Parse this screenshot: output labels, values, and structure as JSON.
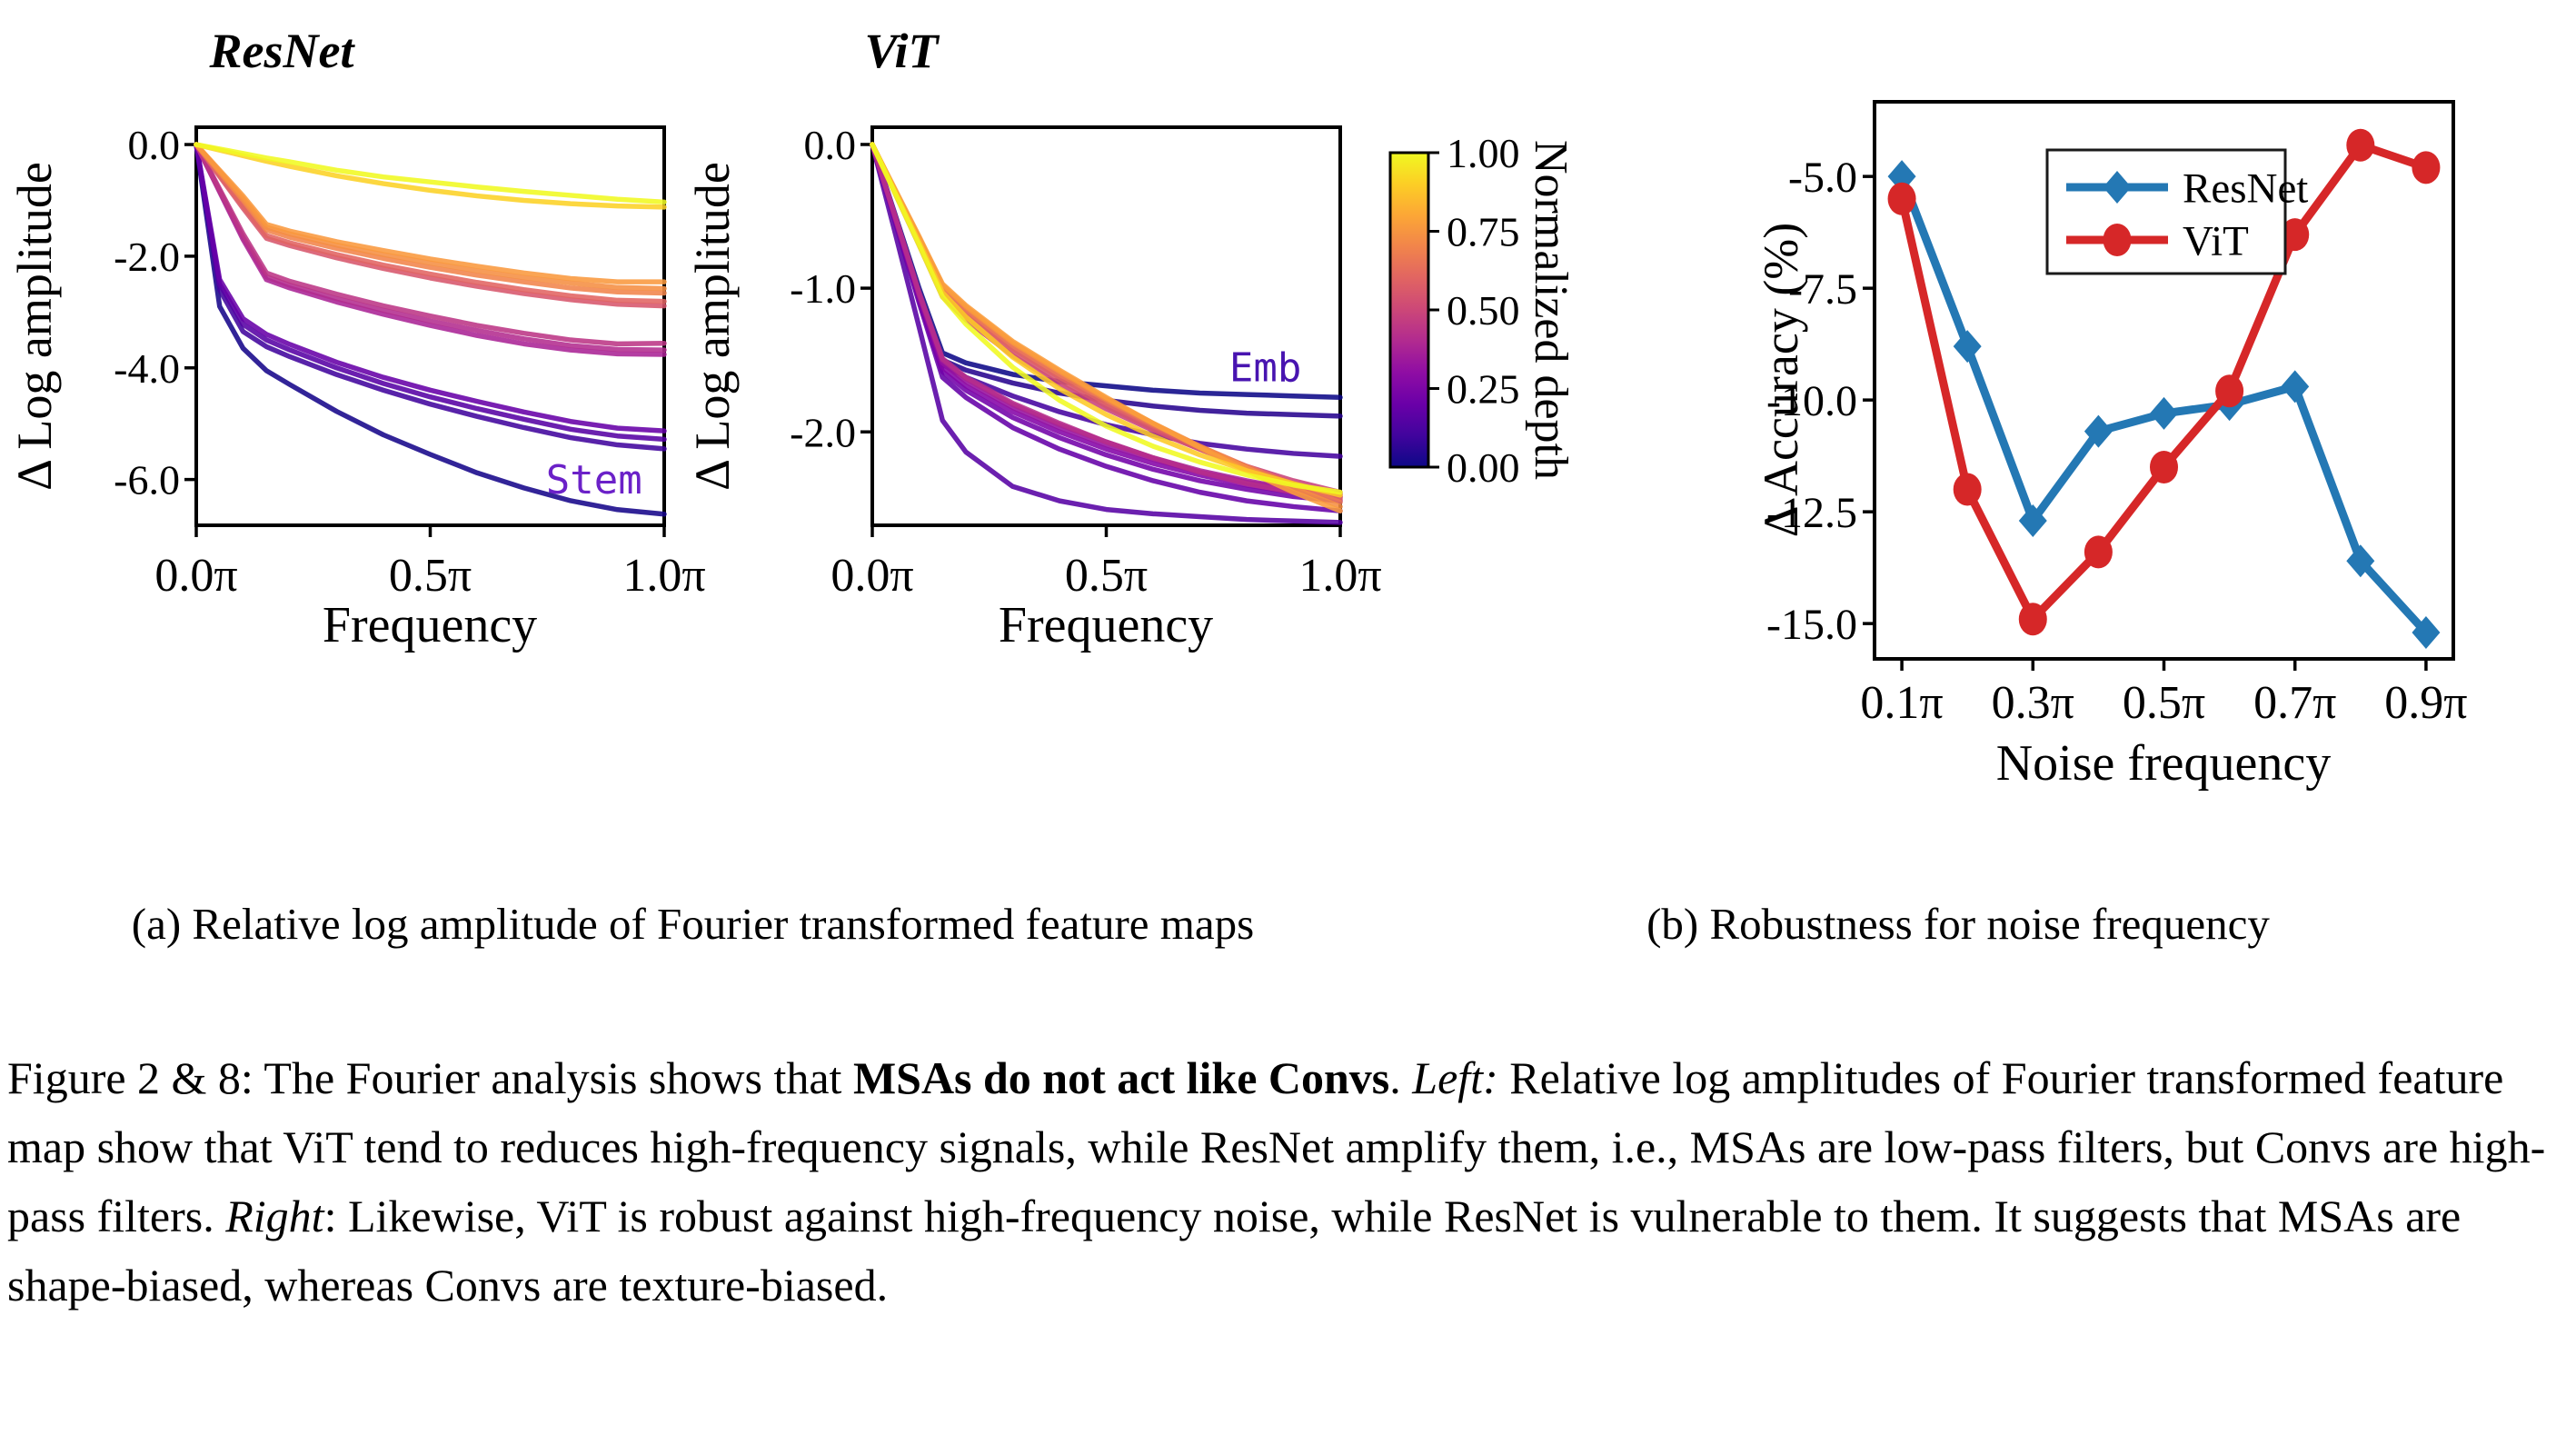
{
  "panel_a": {
    "caption": "(a) Relative log amplitude of Fourier transformed feature maps"
  },
  "panel_b": {
    "caption": "(b) Robustness for noise frequency"
  },
  "figure_caption": {
    "segments": [
      {
        "text": "Figure 2 & 8: The Fourier analysis shows that ",
        "style": "normal"
      },
      {
        "text": "MSAs do not act like Convs",
        "style": "bold"
      },
      {
        "text": ". ",
        "style": "normal"
      },
      {
        "text": "Left:",
        "style": "italic"
      },
      {
        "text": " Relative log amplitudes of Fourier transformed feature map show that ViT tend to reduces high-frequency signals, while ResNet amplify them, i.e., MSAs are low-pass filters, but Convs are high-pass filters. ",
        "style": "normal"
      },
      {
        "text": "Right",
        "style": "italic"
      },
      {
        "text": ": Likewise, ViT is robust against high-frequency noise, while ResNet is vulnerable to them. It suggests that MSAs are shape-biased, whereas Convs are texture-biased.",
        "style": "normal"
      }
    ]
  },
  "colorbar": {
    "label": "Normalized depth",
    "ticks": [
      {
        "v": 1.0,
        "label": "1.00"
      },
      {
        "v": 0.75,
        "label": "0.75"
      },
      {
        "v": 0.5,
        "label": "0.50"
      },
      {
        "v": 0.25,
        "label": "0.25"
      },
      {
        "v": 0.0,
        "label": "0.00"
      }
    ],
    "colormap": "plasma",
    "stops": [
      {
        "at": 0.0,
        "color": "#0d0887"
      },
      {
        "at": 0.1,
        "color": "#41049d"
      },
      {
        "at": 0.2,
        "color": "#6a00a8"
      },
      {
        "at": 0.3,
        "color": "#8f0da4"
      },
      {
        "at": 0.4,
        "color": "#b12a90"
      },
      {
        "at": 0.5,
        "color": "#cc4778"
      },
      {
        "at": 0.6,
        "color": "#e16462"
      },
      {
        "at": 0.7,
        "color": "#f1844b"
      },
      {
        "at": 0.8,
        "color": "#fca636"
      },
      {
        "at": 0.9,
        "color": "#fcce25"
      },
      {
        "at": 1.0,
        "color": "#f0f921"
      }
    ]
  },
  "chart_data": [
    {
      "id": "resnet-fourier",
      "type": "line",
      "title": "ResNet",
      "xlabel": "Frequency",
      "ylabel": "Δ Log amplitude",
      "xlim": [
        0,
        1
      ],
      "ylim": [
        -6.82,
        0.31
      ],
      "grid": false,
      "xticks": [
        {
          "v": 0,
          "label": "0.0π"
        },
        {
          "v": 0.5,
          "label": "0.5π"
        },
        {
          "v": 1,
          "label": "1.0π"
        }
      ],
      "yticks": [
        {
          "v": 0,
          "label": "0.0"
        },
        {
          "v": -2,
          "label": "-2.0"
        },
        {
          "v": -4,
          "label": "-4.0"
        },
        {
          "v": -6,
          "label": "-6.0"
        }
      ],
      "x": [
        0,
        0.05,
        0.1,
        0.15,
        0.2,
        0.3,
        0.4,
        0.5,
        0.6,
        0.7,
        0.8,
        0.9,
        1.0
      ],
      "series": [
        {
          "name": "stem",
          "depth": 0.02,
          "color": "#16068a",
          "values": [
            0,
            -2.9,
            -3.65,
            -4.05,
            -4.3,
            -4.78,
            -5.2,
            -5.55,
            -5.88,
            -6.15,
            -6.38,
            -6.54,
            -6.62
          ]
        },
        {
          "name": "depth-0.10",
          "depth": 0.1,
          "color": "#41049d",
          "values": [
            0,
            -2.6,
            -3.35,
            -3.62,
            -3.8,
            -4.12,
            -4.4,
            -4.65,
            -4.87,
            -5.07,
            -5.25,
            -5.38,
            -5.45
          ]
        },
        {
          "name": "depth-0.16",
          "depth": 0.16,
          "color": "#5601a4",
          "values": [
            0,
            -2.5,
            -3.22,
            -3.5,
            -3.68,
            -4.0,
            -4.28,
            -4.52,
            -4.73,
            -4.92,
            -5.1,
            -5.22,
            -5.28
          ]
        },
        {
          "name": "depth-0.22",
          "depth": 0.22,
          "color": "#6600a7",
          "values": [
            0,
            -2.42,
            -3.12,
            -3.4,
            -3.58,
            -3.9,
            -4.17,
            -4.4,
            -4.6,
            -4.79,
            -4.96,
            -5.08,
            -5.13
          ]
        },
        {
          "name": "depth-0.38",
          "depth": 0.38,
          "color": "#aa2395",
          "values": [
            0,
            -0.85,
            -1.7,
            -2.42,
            -2.57,
            -2.82,
            -3.04,
            -3.24,
            -3.42,
            -3.57,
            -3.68,
            -3.75,
            -3.76
          ]
        },
        {
          "name": "depth-0.42",
          "depth": 0.42,
          "color": "#b32c8e",
          "values": [
            0,
            -0.83,
            -1.66,
            -2.37,
            -2.52,
            -2.76,
            -2.97,
            -3.16,
            -3.33,
            -3.48,
            -3.6,
            -3.67,
            -3.68
          ]
        },
        {
          "name": "depth-0.46",
          "depth": 0.46,
          "color": "#bc3685",
          "values": [
            0,
            -0.8,
            -1.6,
            -2.3,
            -2.45,
            -2.68,
            -2.89,
            -3.07,
            -3.24,
            -3.38,
            -3.5,
            -3.57,
            -3.56
          ]
        },
        {
          "name": "depth-0.56",
          "depth": 0.56,
          "color": "#d7566c",
          "values": [
            0,
            -0.57,
            -1.14,
            -1.68,
            -1.81,
            -2.03,
            -2.22,
            -2.39,
            -2.54,
            -2.67,
            -2.78,
            -2.86,
            -2.89
          ]
        },
        {
          "name": "depth-0.60",
          "depth": 0.6,
          "color": "#e16462",
          "values": [
            0,
            -0.55,
            -1.1,
            -1.63,
            -1.76,
            -1.97,
            -2.16,
            -2.32,
            -2.47,
            -2.6,
            -2.71,
            -2.79,
            -2.81
          ]
        },
        {
          "name": "depth-0.70",
          "depth": 0.7,
          "color": "#f1844b",
          "values": [
            0,
            -0.5,
            -1.0,
            -1.53,
            -1.66,
            -1.86,
            -2.04,
            -2.2,
            -2.34,
            -2.46,
            -2.57,
            -2.64,
            -2.66
          ]
        },
        {
          "name": "depth-0.74",
          "depth": 0.74,
          "color": "#f58e42",
          "values": [
            0,
            -0.48,
            -0.96,
            -1.48,
            -1.6,
            -1.8,
            -1.97,
            -2.12,
            -2.26,
            -2.38,
            -2.48,
            -2.56,
            -2.58
          ]
        },
        {
          "name": "depth-0.78",
          "depth": 0.78,
          "color": "#f9983e",
          "values": [
            0,
            -0.46,
            -0.92,
            -1.43,
            -1.55,
            -1.74,
            -1.9,
            -2.05,
            -2.18,
            -2.3,
            -2.4,
            -2.46,
            -2.46
          ]
        },
        {
          "name": "depth-0.92",
          "depth": 0.92,
          "color": "#fcd225",
          "values": [
            0,
            -0.1,
            -0.2,
            -0.3,
            -0.39,
            -0.56,
            -0.7,
            -0.82,
            -0.92,
            -1.0,
            -1.06,
            -1.1,
            -1.12
          ]
        },
        {
          "name": "depth-1.00",
          "depth": 1.0,
          "color": "#f0f921",
          "values": [
            0,
            -0.08,
            -0.16,
            -0.24,
            -0.31,
            -0.46,
            -0.58,
            -0.67,
            -0.76,
            -0.84,
            -0.91,
            -0.98,
            -1.03
          ]
        }
      ],
      "annotations": [
        {
          "text": "Stem",
          "x": 0.85,
          "y": -6.0,
          "color": "#6b21c8"
        }
      ]
    },
    {
      "id": "vit-fourier",
      "type": "line",
      "title": "ViT",
      "xlabel": "Frequency",
      "ylabel": "Δ Log amplitude",
      "xlim": [
        0,
        1
      ],
      "ylim": [
        -2.65,
        0.12
      ],
      "grid": false,
      "xticks": [
        {
          "v": 0,
          "label": "0.0π"
        },
        {
          "v": 0.5,
          "label": "0.5π"
        },
        {
          "v": 1,
          "label": "1.0π"
        }
      ],
      "yticks": [
        {
          "v": 0,
          "label": "0.0"
        },
        {
          "v": -1,
          "label": "-1.0"
        },
        {
          "v": -2,
          "label": "-2.0"
        }
      ],
      "x": [
        0,
        0.05,
        0.1,
        0.15,
        0.2,
        0.3,
        0.4,
        0.5,
        0.6,
        0.7,
        0.8,
        0.9,
        1.0
      ],
      "series": [
        {
          "name": "emb",
          "depth": 0.0,
          "color": "#0d0887",
          "values": [
            0,
            -0.5,
            -1.0,
            -1.45,
            -1.52,
            -1.6,
            -1.65,
            -1.68,
            -1.71,
            -1.73,
            -1.74,
            -1.75,
            -1.76
          ]
        },
        {
          "name": "depth-0.05",
          "depth": 0.05,
          "color": "#27038e",
          "values": [
            0,
            -0.52,
            -1.05,
            -1.5,
            -1.57,
            -1.66,
            -1.73,
            -1.78,
            -1.82,
            -1.85,
            -1.87,
            -1.88,
            -1.89
          ]
        },
        {
          "name": "depth-0.11",
          "depth": 0.11,
          "color": "#46039f",
          "values": [
            0,
            -0.53,
            -1.07,
            -1.53,
            -1.62,
            -1.75,
            -1.86,
            -1.95,
            -2.02,
            -2.08,
            -2.12,
            -2.15,
            -2.17
          ]
        },
        {
          "name": "depth-0.16",
          "depth": 0.16,
          "color": "#5601a4",
          "values": [
            0,
            -0.63,
            -1.27,
            -1.92,
            -2.14,
            -2.38,
            -2.48,
            -2.54,
            -2.57,
            -2.59,
            -2.61,
            -2.62,
            -2.63
          ]
        },
        {
          "name": "depth-0.21",
          "depth": 0.21,
          "color": "#6400a7",
          "values": [
            0,
            -0.55,
            -1.1,
            -1.62,
            -1.76,
            -1.97,
            -2.12,
            -2.24,
            -2.34,
            -2.42,
            -2.48,
            -2.52,
            -2.55
          ]
        },
        {
          "name": "depth-0.26",
          "depth": 0.26,
          "color": "#7201a8",
          "values": [
            0,
            -0.54,
            -1.08,
            -1.58,
            -1.71,
            -1.9,
            -2.04,
            -2.16,
            -2.26,
            -2.34,
            -2.4,
            -2.45,
            -2.48
          ]
        },
        {
          "name": "depth-0.32",
          "depth": 0.32,
          "color": "#8405a7",
          "values": [
            0,
            -0.53,
            -1.06,
            -1.55,
            -1.68,
            -1.86,
            -2.0,
            -2.12,
            -2.22,
            -2.3,
            -2.37,
            -2.42,
            -2.45
          ]
        },
        {
          "name": "depth-0.37",
          "depth": 0.37,
          "color": "#9511a1",
          "values": [
            0,
            -0.52,
            -1.05,
            -1.52,
            -1.65,
            -1.83,
            -1.97,
            -2.09,
            -2.19,
            -2.28,
            -2.35,
            -2.4,
            -2.43
          ]
        },
        {
          "name": "depth-0.42",
          "depth": 0.42,
          "color": "#a82296",
          "values": [
            0,
            -0.52,
            -1.04,
            -1.5,
            -1.63,
            -1.81,
            -1.95,
            -2.07,
            -2.18,
            -2.27,
            -2.34,
            -2.4,
            -2.44
          ]
        },
        {
          "name": "depth-0.47",
          "depth": 0.47,
          "color": "#b62e8b",
          "values": [
            0,
            -0.51,
            -1.03,
            -1.49,
            -1.62,
            -1.8,
            -1.94,
            -2.07,
            -2.18,
            -2.28,
            -2.36,
            -2.42,
            -2.46
          ]
        },
        {
          "name": "depth-0.53",
          "depth": 0.53,
          "color": "#c8427b",
          "values": [
            0,
            -0.35,
            -0.7,
            -1.06,
            -1.22,
            -1.47,
            -1.67,
            -1.84,
            -1.99,
            -2.12,
            -2.24,
            -2.34,
            -2.42
          ]
        },
        {
          "name": "depth-0.58",
          "depth": 0.58,
          "color": "#d5536e",
          "values": [
            0,
            -0.34,
            -0.69,
            -1.04,
            -1.19,
            -1.44,
            -1.64,
            -1.82,
            -1.98,
            -2.12,
            -2.25,
            -2.36,
            -2.45
          ]
        },
        {
          "name": "depth-0.63",
          "depth": 0.63,
          "color": "#df6263",
          "values": [
            0,
            -0.34,
            -0.67,
            -1.02,
            -1.17,
            -1.42,
            -1.62,
            -1.8,
            -1.96,
            -2.11,
            -2.24,
            -2.36,
            -2.47
          ]
        },
        {
          "name": "depth-0.68",
          "depth": 0.68,
          "color": "#ea7657",
          "values": [
            0,
            -0.33,
            -0.66,
            -1.0,
            -1.15,
            -1.4,
            -1.6,
            -1.78,
            -1.95,
            -2.1,
            -2.24,
            -2.37,
            -2.49
          ]
        },
        {
          "name": "depth-0.74",
          "depth": 0.74,
          "color": "#f58e42",
          "values": [
            0,
            -0.33,
            -0.65,
            -0.98,
            -1.13,
            -1.38,
            -1.58,
            -1.77,
            -1.94,
            -2.1,
            -2.25,
            -2.39,
            -2.52
          ]
        },
        {
          "name": "depth-0.79",
          "depth": 0.79,
          "color": "#fa9d3b",
          "values": [
            0,
            -0.32,
            -0.64,
            -0.97,
            -1.12,
            -1.37,
            -1.57,
            -1.76,
            -1.94,
            -2.11,
            -2.27,
            -2.42,
            -2.55
          ]
        },
        {
          "name": "depth-0.89",
          "depth": 0.89,
          "color": "#fdca26",
          "values": [
            0,
            -0.34,
            -0.68,
            -1.03,
            -1.2,
            -1.48,
            -1.7,
            -1.88,
            -2.03,
            -2.16,
            -2.27,
            -2.36,
            -2.44
          ]
        },
        {
          "name": "depth-1.00",
          "depth": 1.0,
          "color": "#f0f921",
          "values": [
            0,
            -0.35,
            -0.7,
            -1.06,
            -1.25,
            -1.55,
            -1.78,
            -1.96,
            -2.1,
            -2.21,
            -2.3,
            -2.37,
            -2.42
          ]
        }
      ],
      "annotations": [
        {
          "text": "Emb",
          "x": 0.84,
          "y": -1.55,
          "color": "#4814b0"
        }
      ]
    },
    {
      "id": "noise-robustness",
      "type": "line",
      "title": "",
      "xlabel": "Noise frequency",
      "ylabel": "Δ Accuracy (%)",
      "xlim": [
        0.0583,
        0.9417
      ],
      "ylim": [
        -15.79,
        -3.33
      ],
      "grid": false,
      "legend_position": "upper-left-inside",
      "xticks": [
        {
          "v": 0.1,
          "label": "0.1π"
        },
        {
          "v": 0.3,
          "label": "0.3π"
        },
        {
          "v": 0.5,
          "label": "0.5π"
        },
        {
          "v": 0.7,
          "label": "0.7π"
        },
        {
          "v": 0.9,
          "label": "0.9π"
        }
      ],
      "yticks": [
        {
          "v": -5.0,
          "label": "-5.0"
        },
        {
          "v": -7.5,
          "label": "-7.5"
        },
        {
          "v": -10.0,
          "label": "-10.0"
        },
        {
          "v": -12.5,
          "label": "-12.5"
        },
        {
          "v": -15.0,
          "label": "-15.0"
        }
      ],
      "x": [
        0.1,
        0.2,
        0.3,
        0.4,
        0.5,
        0.6,
        0.7,
        0.8,
        0.9
      ],
      "series": [
        {
          "name": "ResNet",
          "color": "#2478b4",
          "marker": "diamond",
          "values": [
            -5.0,
            -8.8,
            -12.7,
            -10.7,
            -10.3,
            -10.1,
            -9.7,
            -13.6,
            -15.2
          ]
        },
        {
          "name": "ViT",
          "color": "#d62728",
          "marker": "circle",
          "values": [
            -5.5,
            -12.0,
            -14.9,
            -13.4,
            -11.5,
            -9.8,
            -6.3,
            -4.3,
            -4.8
          ]
        }
      ],
      "annotations": []
    }
  ]
}
